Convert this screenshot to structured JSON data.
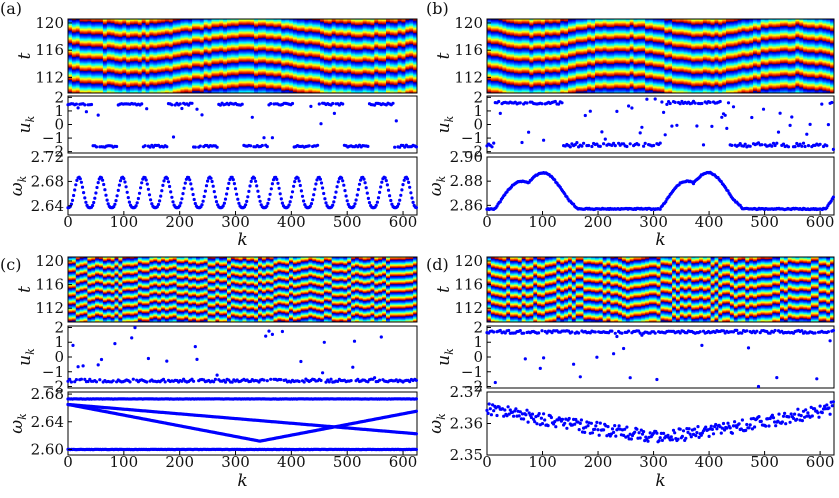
{
  "colors": {
    "marker": "#0000ff",
    "axis": "#000000",
    "background": "#ffffff"
  },
  "chart_data": [
    {
      "panel": "(a)",
      "type": "heatmap+scatter",
      "xlabel": "k",
      "xticks": [
        "0",
        "100",
        "200",
        "300",
        "400",
        "500",
        "600"
      ],
      "xlim": [
        0,
        625
      ],
      "space_time": {
        "ylabel": "t",
        "yticks": [
          "120",
          "116",
          "112"
        ],
        "ylim": [
          110,
          120
        ],
        "colormap": "jet",
        "bands": 6
      },
      "u": {
        "ylabel": "u_k",
        "yticks": [
          "2",
          "1",
          "0",
          "−1",
          "−2"
        ],
        "ylim": [
          -2.1,
          2.1
        ],
        "clusters": [
          1.5,
          -1.6
        ],
        "pattern": "alternating-blocks",
        "block_length": 45
      },
      "omega": {
        "ylabel": "ω_k",
        "yticks": [
          "2.72",
          "2.68",
          "2.64"
        ],
        "ylim": [
          2.625,
          2.72
        ],
        "min": 2.637,
        "max": 2.687,
        "peaks": 16,
        "shape": "periodic-bumps"
      }
    },
    {
      "panel": "(b)",
      "type": "heatmap+scatter",
      "xlabel": "k",
      "xticks": [
        "0",
        "100",
        "200",
        "300",
        "400",
        "500",
        "600"
      ],
      "xlim": [
        0,
        625
      ],
      "space_time": {
        "ylabel": "t",
        "yticks": [
          "120",
          "116",
          "112"
        ],
        "ylim": [
          110,
          120
        ],
        "colormap": "jet",
        "bands": 6
      },
      "u": {
        "ylabel": "u_k",
        "yticks": [
          "2",
          "1",
          "0",
          "−1",
          "−2"
        ],
        "ylim": [
          -2.1,
          2.1
        ],
        "clusters": [
          1.6,
          -1.5
        ],
        "pattern": "slow-waves-with-scatter",
        "block_length": 150
      },
      "omega": {
        "ylabel": "ω_k",
        "yticks": [
          "2.90",
          "2.88",
          "2.86"
        ],
        "ylim": [
          2.852,
          2.9
        ],
        "min": 2.857,
        "max": 2.889,
        "peaks": 4,
        "shape": "double-humps"
      }
    },
    {
      "panel": "(c)",
      "type": "heatmap+scatter",
      "xlabel": "k",
      "xticks": [
        "0",
        "100",
        "200",
        "300",
        "400",
        "500",
        "600"
      ],
      "xlim": [
        0,
        625
      ],
      "space_time": {
        "ylabel": "t",
        "yticks": [
          "120",
          "116",
          "112"
        ],
        "ylim": [
          110,
          120
        ],
        "colormap": "jet",
        "bands": 8
      },
      "u": {
        "ylabel": "u_k",
        "yticks": [
          "2",
          "1",
          "0",
          "−1",
          "−2"
        ],
        "ylim": [
          -2.1,
          2.1
        ],
        "clusters": [
          -1.6
        ],
        "pattern": "mostly-flat-with-outliers",
        "block_length": 0
      },
      "omega": {
        "ylabel": "ω_k",
        "yticks": [
          "2.68",
          "2.64",
          "2.60"
        ],
        "ylim": [
          2.592,
          2.683
        ],
        "levels": [
          2.673,
          2.668,
          2.603,
          2.6
        ],
        "crossing_range": [
          2.612,
          2.665
        ],
        "shape": "crossing-lines"
      }
    },
    {
      "panel": "(d)",
      "type": "heatmap+scatter",
      "xlabel": "k",
      "xticks": [
        "0",
        "100",
        "200",
        "300",
        "400",
        "500",
        "600"
      ],
      "xlim": [
        0,
        625
      ],
      "space_time": {
        "ylabel": "t",
        "yticks": [
          "120",
          "116",
          "112"
        ],
        "ylim": [
          110,
          120
        ],
        "colormap": "jet",
        "bands": 7
      },
      "u": {
        "ylabel": "u_k",
        "yticks": [
          "2",
          "1",
          "0",
          "−1",
          "−2"
        ],
        "ylim": [
          -2.1,
          2.1
        ],
        "clusters": [
          1.7
        ],
        "pattern": "mostly-flat-with-outliers",
        "block_length": 0
      },
      "omega": {
        "ylabel": "ω_k",
        "yticks": [
          "2.37",
          "2.36",
          "2.35"
        ],
        "ylim": [
          2.35,
          2.37
        ],
        "min": 2.352,
        "max": 2.365,
        "peaks": 0,
        "shape": "noisy-valley"
      }
    }
  ]
}
